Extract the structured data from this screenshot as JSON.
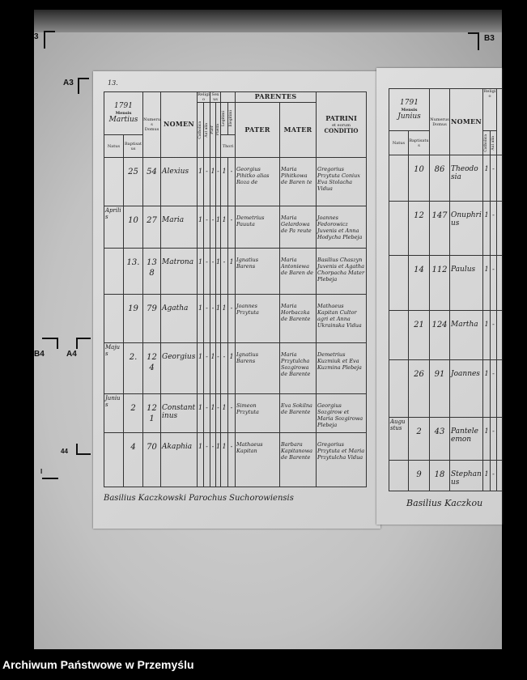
{
  "archive_label": "Archiwum Państwowe w Przemyślu",
  "frame_marks": {
    "top_left": "3",
    "top_right": "B3",
    "a3": "A3",
    "b4": "B4",
    "a4": "A4",
    "a4_lower": "44",
    "left_lower": "I"
  },
  "left_page": {
    "page_number": "13.",
    "year": "1791",
    "mensis_label": "Mensis",
    "mensis_value": "Martius",
    "headers": {
      "natus": "Natus",
      "baptisatus": "Baptisatus",
      "numerus_domus": "Numerus Domus",
      "nomen": "NOMEN",
      "religio": "Religio",
      "catholica": "Catholica",
      "aut_alia": "Aut alia",
      "sexus": "Sexus",
      "puer": "Puer",
      "puella": "Puella",
      "legitimi": "Legitimi",
      "illegitimi": "Illegitimi",
      "thori": "Thori",
      "parentes": "PARENTES",
      "pater": "PATER",
      "mater": "MATER",
      "patrini": "PATRINI",
      "patrini_sub": "et eorum",
      "conditio": "CONDITIO"
    },
    "rows": [
      {
        "month": "",
        "baptisatus": "25",
        "domus": "54",
        "nomen": "Alexius",
        "catholica": "1",
        "aut_alia": "-",
        "puer": "1",
        "puella": "-",
        "legitimi": "1",
        "illegitimi": "-",
        "pater": "Georgius Pihitko alias Roza de",
        "mater": "Maria Pihitkowa de Baren te",
        "patrini": "Gregorius Przytuta Coniux Eva Stolacha Vidua"
      },
      {
        "month": "Aprilis",
        "baptisatus": "10",
        "domus": "27",
        "nomen": "Maria",
        "catholica": "1",
        "aut_alia": "-",
        "puer": "-",
        "puella": "1",
        "legitimi": "1",
        "illegitimi": "-",
        "pater": "Demetrius Pauuta",
        "mater": "Maria Gelardowa de Pa reute",
        "patrini": "Joannes Fedorowicz Juvenis et Anna Hodycha Plebeja"
      },
      {
        "month": "",
        "baptisatus": "13.",
        "domus": "138",
        "nomen": "Matrona",
        "catholica": "1",
        "aut_alia": "-",
        "puer": "-",
        "puella": "1",
        "legitimi": "-",
        "illegitimi": "1",
        "pater": "Ignatius Barens",
        "mater": "Maria Antoniewa de Baren de",
        "patrini": "Basilius Chaszyn Juvenis et Agatha Chorpacha Mater Plebeja"
      },
      {
        "month": "",
        "baptisatus": "19",
        "domus": "79",
        "nomen": "Agatha",
        "catholica": "1",
        "aut_alia": "-",
        "puer": "-",
        "puella": "1",
        "legitimi": "1",
        "illegitimi": "-",
        "pater": "Joannes Przytuta",
        "mater": "Maria Horbaczka de Barente",
        "patrini": "Mathaeus Kapitan Cultor agri et Anna Ukrainska Vidua"
      },
      {
        "month": "Majus",
        "baptisatus": "2.",
        "domus": "124",
        "nomen": "Georgius",
        "catholica": "1",
        "aut_alia": "-",
        "puer": "1",
        "puella": "-",
        "legitimi": "-",
        "illegitimi": "1",
        "pater": "Ignatius Barens",
        "mater": "Maria Przytulcha Sozgirowa de Barente",
        "patrini": "Demetrius Kuzmiuk et Eva Kuzmina Plebeja"
      },
      {
        "month": "Junius",
        "baptisatus": "2",
        "domus": "121",
        "nomen": "Constantinus",
        "catholica": "1",
        "aut_alia": "-",
        "puer": "1",
        "puella": "-",
        "legitimi": "1",
        "illegitimi": "-",
        "pater": "Simeon Przytuta",
        "mater": "Eva Sokilna de Barente",
        "patrini": "Georgius Sozgirow et Maria Sozgirowa Plebeja"
      },
      {
        "month": "",
        "baptisatus": "4",
        "domus": "70",
        "nomen": "Akaphia",
        "catholica": "1",
        "aut_alia": "-",
        "puer": "-",
        "puella": "1",
        "legitimi": "1",
        "illegitimi": "-",
        "pater": "Mathaeus Kapitan",
        "mater": "Barbara Kapitanowa de Barente",
        "patrini": "Gregorius Przytuta et Maria Przytulcha Vidua"
      }
    ],
    "signature": "Basilius Kaczkowski Parochus Suchorowiensis"
  },
  "right_page": {
    "year": "1791",
    "mensis_label": "Mensis",
    "mensis_value": "Junius",
    "headers": {
      "natus": "Natus",
      "baptisatus": "Baptisatus",
      "numerus_domus": "Numerus Domus",
      "nomen": "NOMEN",
      "religio": "Religio",
      "catholica": "Catholica",
      "aut_alia": "Aut alia"
    },
    "rows": [
      {
        "month": "",
        "baptisatus": "10",
        "domus": "86",
        "nomen": "Theodosia",
        "catholica": "1",
        "aut_alia": "-"
      },
      {
        "month": "",
        "baptisatus": "12",
        "domus": "147",
        "nomen": "Onuphrius",
        "catholica": "1",
        "aut_alia": "-"
      },
      {
        "month": "",
        "baptisatus": "14",
        "domus": "112",
        "nomen": "Paulus",
        "catholica": "1",
        "aut_alia": "-"
      },
      {
        "month": "",
        "baptisatus": "21",
        "domus": "124",
        "nomen": "Martha",
        "catholica": "1",
        "aut_alia": "-"
      },
      {
        "month": "",
        "baptisatus": "26",
        "domus": "91",
        "nomen": "Joannes",
        "catholica": "1",
        "aut_alia": "-"
      },
      {
        "month": "Augustus",
        "baptisatus": "2",
        "domus": "43",
        "nomen": "Panteleemon",
        "catholica": "1",
        "aut_alia": "-"
      },
      {
        "month": "",
        "baptisatus": "9",
        "domus": "18",
        "nomen": "Stephanus",
        "catholica": "1",
        "aut_alia": "-"
      }
    ],
    "signature": "Basilius Kaczkou"
  }
}
